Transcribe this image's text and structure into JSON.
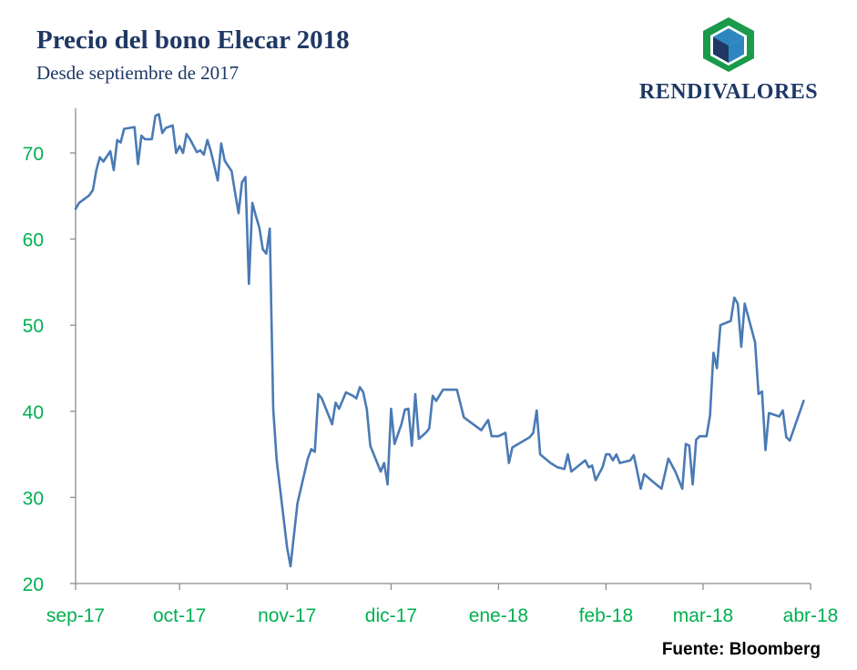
{
  "header": {
    "title": "Precio del bono Elecar 2018",
    "subtitle": "Desde septiembre de 2017"
  },
  "logo": {
    "text": "RENDIVALORES",
    "icon": "cube-logo-icon"
  },
  "footer": {
    "source": "Fuente: Bloomberg"
  },
  "colors": {
    "line": "#4a7ab5",
    "tick_label": "#00b050",
    "title": "#1f3864",
    "logo_green": "#1a9a4a",
    "logo_blue_light": "#2e86c1",
    "logo_blue_dark": "#1f3864"
  },
  "chart_data": {
    "type": "line",
    "title": "Precio del bono Elecar 2018",
    "subtitle": "Desde septiembre de 2017",
    "xlabel": "",
    "ylabel": "",
    "ylim": [
      20,
      75
    ],
    "yticks": [
      20,
      30,
      40,
      50,
      60,
      70
    ],
    "x_tick_labels": [
      "sep-17",
      "oct-17",
      "nov-17",
      "dic-17",
      "ene-18",
      "feb-18",
      "mar-18",
      "abr-18"
    ],
    "grid": false,
    "legend": "none",
    "series": [
      {
        "name": "",
        "points": [
          [
            "2017-09-01",
            63.5
          ],
          [
            "2017-09-02",
            64.2
          ],
          [
            "2017-09-05",
            65.1
          ],
          [
            "2017-09-06",
            65.7
          ],
          [
            "2017-09-07",
            68.0
          ],
          [
            "2017-09-08",
            69.5
          ],
          [
            "2017-09-09",
            69.0
          ],
          [
            "2017-09-11",
            70.2
          ],
          [
            "2017-09-12",
            68.0
          ],
          [
            "2017-09-13",
            71.5
          ],
          [
            "2017-09-14",
            71.2
          ],
          [
            "2017-09-15",
            72.8
          ],
          [
            "2017-09-18",
            73.0
          ],
          [
            "2017-09-19",
            68.7
          ],
          [
            "2017-09-20",
            72.0
          ],
          [
            "2017-09-21",
            71.6
          ],
          [
            "2017-09-23",
            71.6
          ],
          [
            "2017-09-24",
            74.3
          ],
          [
            "2017-09-25",
            74.5
          ],
          [
            "2017-09-26",
            72.3
          ],
          [
            "2017-09-27",
            72.9
          ],
          [
            "2017-09-29",
            73.2
          ],
          [
            "2017-09-30",
            70.0
          ],
          [
            "2017-10-01",
            70.8
          ],
          [
            "2017-10-02",
            70.0
          ],
          [
            "2017-10-03",
            72.2
          ],
          [
            "2017-10-04",
            71.6
          ],
          [
            "2017-10-06",
            70.1
          ],
          [
            "2017-10-07",
            70.3
          ],
          [
            "2017-10-08",
            69.8
          ],
          [
            "2017-10-09",
            71.5
          ],
          [
            "2017-10-10",
            70.2
          ],
          [
            "2017-10-12",
            66.8
          ],
          [
            "2017-10-13",
            71.1
          ],
          [
            "2017-10-14",
            69.1
          ],
          [
            "2017-10-16",
            67.9
          ],
          [
            "2017-10-17",
            65.4
          ],
          [
            "2017-10-18",
            63.0
          ],
          [
            "2017-10-19",
            66.6
          ],
          [
            "2017-10-20",
            67.2
          ],
          [
            "2017-10-21",
            54.8
          ],
          [
            "2017-10-22",
            64.2
          ],
          [
            "2017-10-23",
            62.7
          ],
          [
            "2017-10-24",
            61.3
          ],
          [
            "2017-10-25",
            58.8
          ],
          [
            "2017-10-26",
            58.3
          ],
          [
            "2017-10-27",
            61.2
          ],
          [
            "2017-10-28",
            40.3
          ],
          [
            "2017-10-29",
            34.3
          ],
          [
            "2017-10-31",
            27.6
          ],
          [
            "2017-11-01",
            24.2
          ],
          [
            "2017-11-02",
            22.0
          ],
          [
            "2017-11-04",
            29.3
          ],
          [
            "2017-11-07",
            34.5
          ],
          [
            "2017-11-08",
            35.6
          ],
          [
            "2017-11-09",
            35.3
          ],
          [
            "2017-11-10",
            42.0
          ],
          [
            "2017-11-11",
            41.5
          ],
          [
            "2017-11-14",
            38.5
          ],
          [
            "2017-11-15",
            41.0
          ],
          [
            "2017-11-16",
            40.3
          ],
          [
            "2017-11-18",
            42.2
          ],
          [
            "2017-11-20",
            41.8
          ],
          [
            "2017-11-21",
            41.5
          ],
          [
            "2017-11-22",
            42.8
          ],
          [
            "2017-11-23",
            42.2
          ],
          [
            "2017-11-24",
            40.2
          ],
          [
            "2017-11-25",
            36.0
          ],
          [
            "2017-11-26",
            35.0
          ],
          [
            "2017-11-28",
            33.0
          ],
          [
            "2017-11-29",
            34.0
          ],
          [
            "2017-11-30",
            31.5
          ],
          [
            "2017-12-01",
            40.3
          ],
          [
            "2017-12-02",
            36.2
          ],
          [
            "2017-12-04",
            38.5
          ],
          [
            "2017-12-05",
            40.2
          ],
          [
            "2017-12-06",
            40.3
          ],
          [
            "2017-12-07",
            36.0
          ],
          [
            "2017-12-08",
            42.0
          ],
          [
            "2017-12-09",
            36.8
          ],
          [
            "2017-12-11",
            37.5
          ],
          [
            "2017-12-12",
            38.0
          ],
          [
            "2017-12-13",
            41.8
          ],
          [
            "2017-12-14",
            41.2
          ],
          [
            "2017-12-16",
            42.5
          ],
          [
            "2017-12-20",
            42.5
          ],
          [
            "2017-12-22",
            39.3
          ],
          [
            "2017-12-27",
            37.8
          ],
          [
            "2017-12-29",
            39.0
          ],
          [
            "2017-12-30",
            37.1
          ],
          [
            "2018-01-01",
            37.1
          ],
          [
            "2018-01-03",
            37.5
          ],
          [
            "2018-01-04",
            34.0
          ],
          [
            "2018-01-05",
            35.8
          ],
          [
            "2018-01-10",
            37.0
          ],
          [
            "2018-01-11",
            37.5
          ],
          [
            "2018-01-12",
            40.1
          ],
          [
            "2018-01-13",
            35.0
          ],
          [
            "2018-01-16",
            34.0
          ],
          [
            "2018-01-18",
            33.5
          ],
          [
            "2018-01-19",
            33.4
          ],
          [
            "2018-01-20",
            33.3
          ],
          [
            "2018-01-21",
            35.0
          ],
          [
            "2018-01-22",
            33.0
          ],
          [
            "2018-01-26",
            34.3
          ],
          [
            "2018-01-27",
            33.5
          ],
          [
            "2018-01-28",
            33.7
          ],
          [
            "2018-01-29",
            32.0
          ],
          [
            "2018-01-31",
            33.5
          ],
          [
            "2018-02-01",
            35.0
          ],
          [
            "2018-02-02",
            35.0
          ],
          [
            "2018-02-03",
            34.3
          ],
          [
            "2018-02-04",
            35.0
          ],
          [
            "2018-02-05",
            34.0
          ],
          [
            "2018-02-08",
            34.3
          ],
          [
            "2018-02-09",
            34.9
          ],
          [
            "2018-02-10",
            33.0
          ],
          [
            "2018-02-11",
            31.0
          ],
          [
            "2018-02-12",
            32.7
          ],
          [
            "2018-02-14",
            32.0
          ],
          [
            "2018-02-17",
            31.0
          ],
          [
            "2018-02-19",
            34.5
          ],
          [
            "2018-02-21",
            33.0
          ],
          [
            "2018-02-23",
            31.0
          ],
          [
            "2018-02-24",
            36.2
          ],
          [
            "2018-02-25",
            36.0
          ],
          [
            "2018-02-26",
            31.5
          ],
          [
            "2018-02-27",
            36.7
          ],
          [
            "2018-02-28",
            37.1
          ],
          [
            "2018-03-02",
            37.1
          ],
          [
            "2018-03-03",
            39.5
          ],
          [
            "2018-03-04",
            46.8
          ],
          [
            "2018-03-05",
            45.0
          ],
          [
            "2018-03-06",
            50.0
          ],
          [
            "2018-03-09",
            50.5
          ],
          [
            "2018-03-10",
            53.2
          ],
          [
            "2018-03-11",
            52.5
          ],
          [
            "2018-03-12",
            47.5
          ],
          [
            "2018-03-13",
            52.5
          ],
          [
            "2018-03-14",
            51.0
          ],
          [
            "2018-03-16",
            48.0
          ],
          [
            "2018-03-17",
            42.0
          ],
          [
            "2018-03-18",
            42.3
          ],
          [
            "2018-03-19",
            35.5
          ],
          [
            "2018-03-20",
            39.8
          ],
          [
            "2018-03-23",
            39.4
          ],
          [
            "2018-03-24",
            40.1
          ],
          [
            "2018-03-25",
            37.0
          ],
          [
            "2018-03-26",
            36.6
          ],
          [
            "2018-03-30",
            41.2
          ]
        ]
      }
    ]
  }
}
